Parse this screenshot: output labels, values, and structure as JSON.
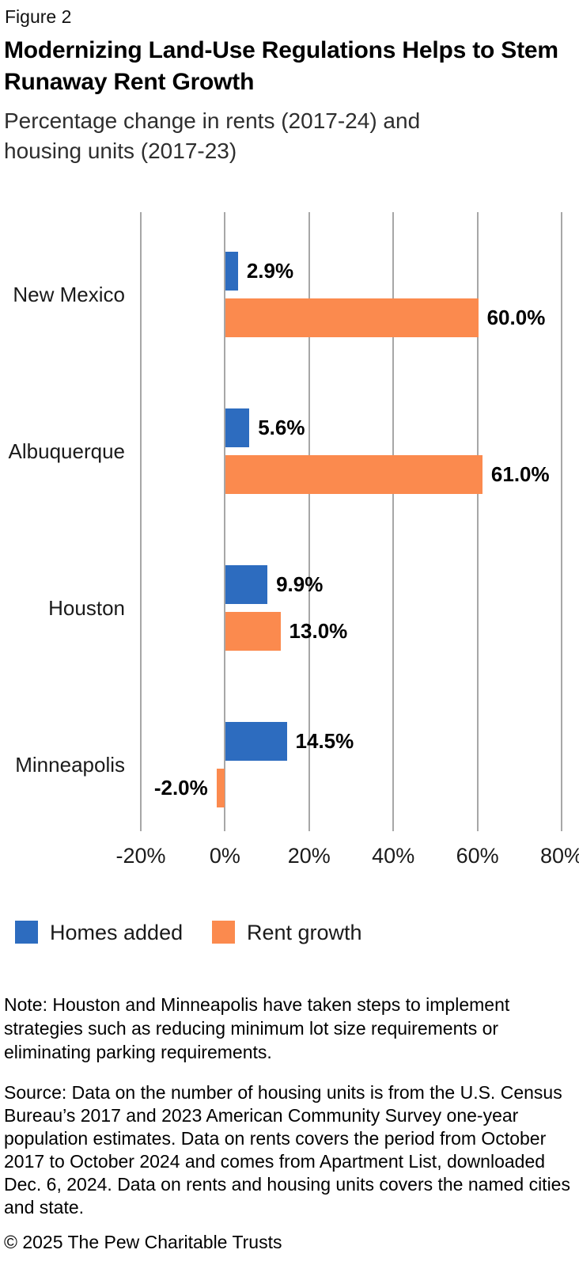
{
  "header": {
    "figure_label": "Figure 2",
    "title": "Modernizing Land-Use Regulations Helps to Stem Runaway Rent Growth",
    "subtitle": "Percentage change in rents (2017-24) and housing units (2017-23)"
  },
  "chart_data": {
    "type": "bar",
    "orientation": "horizontal",
    "title": "Modernizing Land-Use Regulations Helps to Stem Runaway Rent Growth",
    "subtitle": "Percentage change in rents (2017-24) and housing units (2017-23)",
    "categories": [
      "New Mexico",
      "Albuquerque",
      "Houston",
      "Minneapolis"
    ],
    "series": [
      {
        "name": "Homes added",
        "color": "#2d6cbf",
        "values": [
          2.9,
          5.6,
          9.9,
          14.5
        ],
        "labels": [
          "2.9%",
          "5.6%",
          "9.9%",
          "14.5%"
        ]
      },
      {
        "name": "Rent growth",
        "color": "#fb8a4e",
        "values": [
          60.0,
          61.0,
          13.0,
          -2.0
        ],
        "labels": [
          "60.0%",
          "61.0%",
          "13.0%",
          "-2.0%"
        ]
      }
    ],
    "x_axis": {
      "min": -20,
      "max": 80,
      "tick_step": 20,
      "tick_labels": [
        "-20%",
        "0%",
        "20%",
        "40%",
        "60%",
        "80%"
      ]
    },
    "grid": true,
    "gridline_color": "#a7a7a7",
    "legend_position": "bottom"
  },
  "footer": {
    "note": "Note: Houston and Minneapolis have taken steps to implement strategies such as reducing minimum lot size requirements or eliminating parking requirements.",
    "source": "Source: Data on the number of housing units is from the U.S. Census Bureau’s 2017 and 2023 American Community Survey one-year population estimates. Data on rents covers the period from October 2017 to October 2024 and comes from Apartment List, downloaded Dec. 6, 2024. Data on rents and housing units covers the named cities and state.",
    "copyright": "© 2025 The Pew Charitable Trusts"
  }
}
